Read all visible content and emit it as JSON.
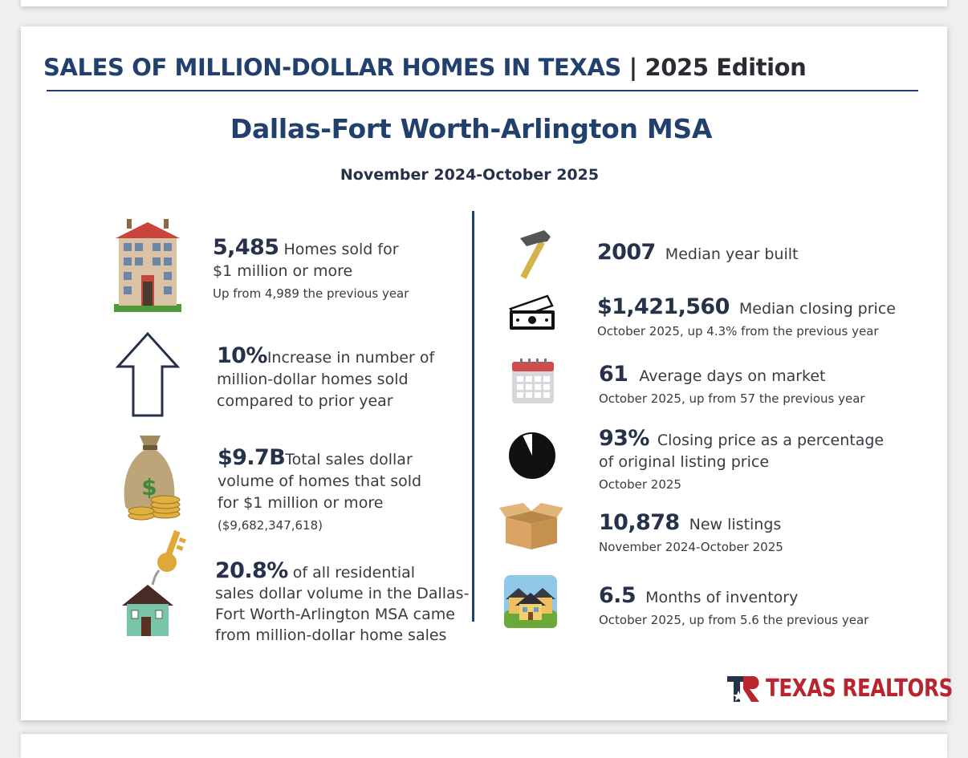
{
  "header": {
    "title_main": "SALES OF MILLION-DOLLAR HOMES IN TEXAS",
    "title_sep": "|",
    "title_edition": "2025 Edition",
    "msa": "Dallas-Fort Worth-Arlington MSA",
    "period": "November 2024-October 2025"
  },
  "left_stats": [
    {
      "icon": "mansion-icon",
      "value": "5,485",
      "text": "Homes sold for",
      "text2": "$1 million or more",
      "sub": "Up from 4,989 the previous year"
    },
    {
      "icon": "up-arrow-icon",
      "value": "10%",
      "text": "Increase in number of",
      "text2": "million-dollar homes sold",
      "text3": "compared to prior year"
    },
    {
      "icon": "money-bag-icon",
      "value": "$9.7B",
      "text": "Total sales dollar",
      "text2": "volume of homes that sold",
      "text3": "for $1 million or more",
      "sub": "($9,682,347,618)"
    },
    {
      "icon": "house-key-icon",
      "value": "20.8%",
      "text": "of all residential",
      "text2": "sales dollar volume in the Dallas-",
      "text3": "Fort Worth-Arlington MSA came",
      "text4": "from million-dollar home sales"
    }
  ],
  "right_stats": [
    {
      "icon": "hammer-icon",
      "value": "2007",
      "text": "Median year built"
    },
    {
      "icon": "cash-icon",
      "value": "$1,421,560",
      "text": "Median closing price",
      "sub": "October 2025, up 4.3% from the previous year"
    },
    {
      "icon": "calendar-icon",
      "value": "61",
      "text": "Average days on market",
      "sub": "October 2025, up from 57 the previous year"
    },
    {
      "icon": "pie-icon",
      "value": "93%",
      "text": "Closing price as a percentage",
      "text2": "of original listing price",
      "sub": "October 2025",
      "pie_fraction": 0.93
    },
    {
      "icon": "box-icon",
      "value": "10,878",
      "text": "New listings",
      "sub": "November 2024-October 2025"
    },
    {
      "icon": "houses-icon",
      "value": "6.5",
      "text": "Months of inventory",
      "sub": "October 2025, up from 5.6 the previous year"
    }
  ],
  "logo": {
    "text": "TEXAS REALTORS",
    "mark": "TR"
  },
  "colors": {
    "navy": "#22406e",
    "red": "#b8252f",
    "text": "#3a3a42"
  }
}
